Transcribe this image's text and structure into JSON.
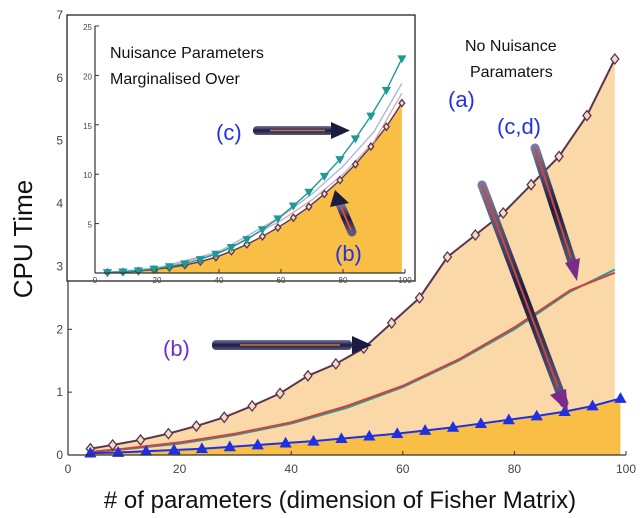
{
  "chart_data": [
    {
      "type": "area",
      "xlabel": "# of parameters (dimension of Fisher Matrix)",
      "ylabel": "CPU Time",
      "xlim": [
        0,
        100
      ],
      "ylim": [
        0,
        7
      ],
      "xticks": [
        0,
        20,
        40,
        60,
        80,
        100
      ],
      "yticks": [
        0,
        1,
        2,
        3,
        4,
        5,
        6,
        7
      ],
      "grid": false,
      "series": [
        {
          "marker": "diamond",
          "color": "#5a3550",
          "fill": "#fbd8a8",
          "x": [
            4,
            8,
            13,
            18,
            23,
            28,
            33,
            38,
            43,
            48,
            53,
            58,
            63,
            68,
            73,
            78,
            83,
            88,
            93,
            98
          ],
          "y": [
            0.1,
            0.16,
            0.24,
            0.34,
            0.46,
            0.6,
            0.78,
            0.98,
            1.26,
            1.45,
            1.7,
            2.1,
            2.5,
            3.15,
            3.5,
            3.85,
            4.3,
            4.75,
            5.4,
            6.3
          ]
        },
        {
          "marker": "none",
          "color": "#2d9a8e",
          "x": [
            4,
            10,
            20,
            30,
            36,
            40,
            50,
            60,
            70,
            80,
            90,
            98
          ],
          "y": [
            0.05,
            0.09,
            0.18,
            0.32,
            0.43,
            0.5,
            0.75,
            1.08,
            1.5,
            2.0,
            2.6,
            2.95
          ]
        },
        {
          "marker": "none",
          "color": "#d04040",
          "x": [
            4,
            10,
            20,
            30,
            40,
            50,
            60,
            70,
            80,
            90,
            98
          ],
          "y": [
            0.05,
            0.1,
            0.2,
            0.34,
            0.52,
            0.78,
            1.1,
            1.52,
            2.03,
            2.62,
            2.9
          ]
        },
        {
          "marker": "triangle",
          "color": "#2030e0",
          "fill": "#f9be45",
          "x": [
            4,
            9,
            14,
            19,
            24,
            29,
            34,
            39,
            44,
            49,
            54,
            59,
            64,
            69,
            74,
            79,
            84,
            89,
            94,
            99
          ],
          "y": [
            0.03,
            0.04,
            0.06,
            0.08,
            0.1,
            0.13,
            0.16,
            0.19,
            0.22,
            0.26,
            0.3,
            0.34,
            0.39,
            0.44,
            0.5,
            0.56,
            0.62,
            0.69,
            0.78,
            0.9
          ]
        }
      ],
      "annotations": [
        {
          "text": "No Nuisance",
          "color": "#111111"
        },
        {
          "text": "Paramaters",
          "color": "#111111"
        },
        {
          "text": "(a)",
          "color": "#2233dd"
        },
        {
          "text": "(c,d)",
          "color": "#2233dd"
        },
        {
          "text": "(b)",
          "color": "#2233dd"
        }
      ]
    },
    {
      "type": "area",
      "xlim": [
        0,
        100
      ],
      "ylim": [
        0,
        25
      ],
      "xticks": [
        0,
        20,
        40,
        60,
        80,
        100
      ],
      "yticks": [
        5,
        10,
        15,
        20,
        25
      ],
      "grid": false,
      "series": [
        {
          "marker": "diamond",
          "color": "#5a3550",
          "fill": "#f9be45",
          "x": [
            4,
            9,
            14,
            19,
            24,
            29,
            34,
            39,
            44,
            49,
            54,
            59,
            64,
            69,
            74,
            79,
            84,
            89,
            94,
            99
          ],
          "y": [
            0.05,
            0.1,
            0.2,
            0.35,
            0.55,
            0.8,
            1.15,
            1.6,
            2.2,
            2.9,
            3.7,
            4.6,
            5.6,
            6.7,
            8.0,
            9.4,
            11.0,
            12.8,
            14.8,
            17.2
          ]
        },
        {
          "marker": "none",
          "color": "#e0a8b8",
          "x": [
            4,
            20,
            40,
            60,
            70,
            80,
            90,
            99
          ],
          "y": [
            0.06,
            0.45,
            2.0,
            5.3,
            7.4,
            10.0,
            13.3,
            18.2
          ]
        },
        {
          "marker": "none",
          "color": "#a8b8d8",
          "x": [
            4,
            20,
            40,
            60,
            70,
            80,
            90,
            99
          ],
          "y": [
            0.07,
            0.5,
            2.15,
            5.7,
            8.0,
            10.8,
            14.3,
            19.2
          ]
        },
        {
          "marker": "triangle-down",
          "color": "#1e9a95",
          "x": [
            4,
            9,
            14,
            19,
            24,
            29,
            34,
            39,
            44,
            49,
            54,
            59,
            64,
            69,
            74,
            79,
            84,
            89,
            94,
            99
          ],
          "y": [
            0.06,
            0.12,
            0.24,
            0.42,
            0.65,
            0.95,
            1.38,
            1.92,
            2.6,
            3.4,
            4.4,
            5.5,
            6.8,
            8.2,
            9.8,
            11.5,
            13.6,
            15.9,
            18.5,
            21.7
          ]
        }
      ],
      "annotations": [
        {
          "text": "Nuisance Parameters",
          "color": "#111111"
        },
        {
          "text": "Marginalised Over",
          "color": "#111111"
        },
        {
          "text": "(c)",
          "color": "#2233dd"
        },
        {
          "text": "(b)",
          "color": "#2233dd"
        }
      ]
    }
  ]
}
